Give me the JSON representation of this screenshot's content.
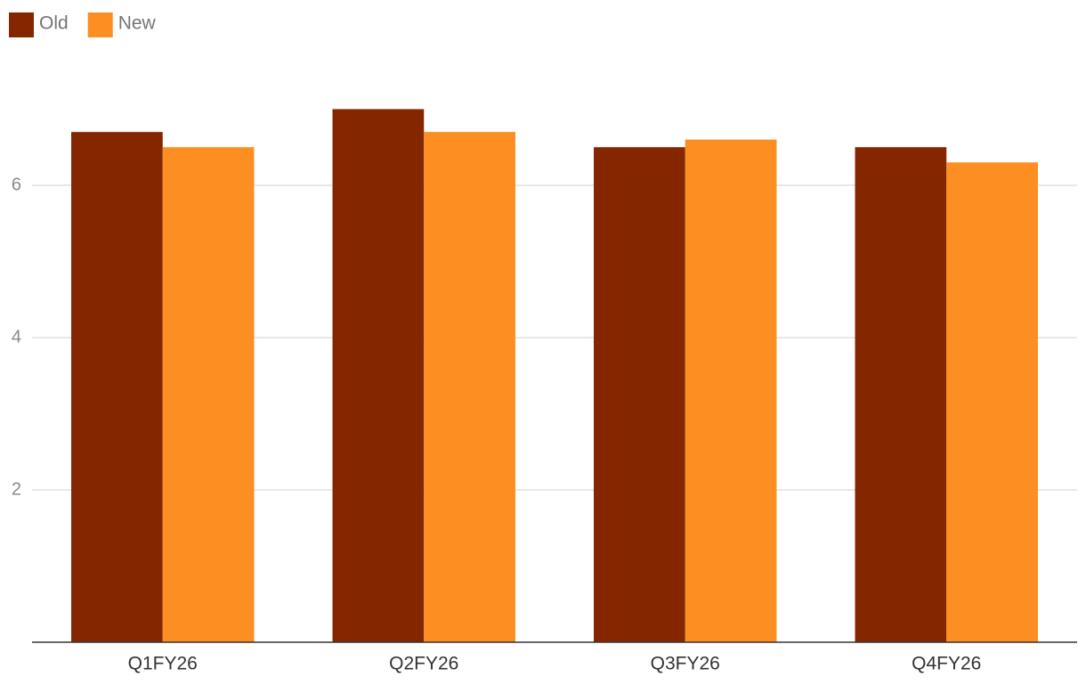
{
  "chart_data": {
    "type": "bar",
    "categories": [
      "Q1FY26",
      "Q2FY26",
      "Q3FY26",
      "Q4FY26"
    ],
    "series": [
      {
        "name": "Old",
        "color": "#842600",
        "values": [
          6.7,
          7.0,
          6.5,
          6.5
        ]
      },
      {
        "name": "New",
        "color": "#fc8e22",
        "values": [
          6.5,
          6.7,
          6.6,
          6.3
        ]
      }
    ],
    "ylim": [
      0,
      8
    ],
    "yticks": [
      2,
      4,
      6
    ],
    "grid": true,
    "legend": "top-left"
  }
}
